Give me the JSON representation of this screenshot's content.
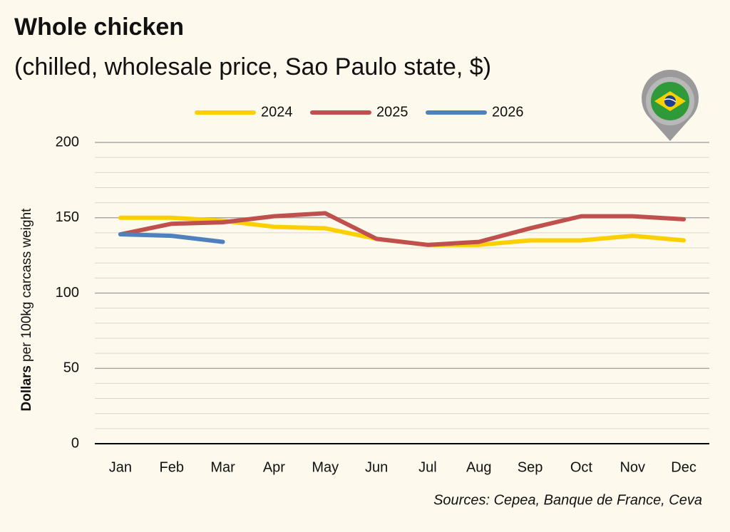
{
  "chart_data": {
    "type": "line",
    "title": "Whole chicken",
    "subtitle": "(chilled, wholesale price, Sao Paulo state, $)",
    "y_label_bold": "Dollars",
    "y_label": "per 100kg carcass weight",
    "source": "Sources: Cepea, Banque de France, Ceva",
    "categories": [
      "Jan",
      "Feb",
      "Mar",
      "Apr",
      "May",
      "Jun",
      "Jul",
      "Aug",
      "Sep",
      "Oct",
      "Nov",
      "Dec"
    ],
    "series": [
      {
        "name": "2024",
        "color": "#fcd000",
        "values": [
          150,
          150,
          148,
          144,
          143,
          136,
          132,
          132,
          135,
          135,
          138,
          135
        ]
      },
      {
        "name": "2025",
        "color": "#c0504d",
        "values": [
          139,
          146,
          147,
          151,
          153,
          136,
          132,
          134,
          143,
          151,
          151,
          149
        ]
      },
      {
        "name": "2026",
        "color": "#4f81bd",
        "values": [
          139,
          138,
          134,
          null,
          null,
          null,
          null,
          null,
          null,
          null,
          null,
          null
        ]
      }
    ],
    "ylim": [
      0,
      200
    ],
    "yticks": [
      0,
      50,
      100,
      150,
      200
    ],
    "minor_gridlines": [
      10,
      20,
      30,
      40,
      60,
      70,
      80,
      90,
      110,
      120,
      130,
      140,
      160,
      170,
      180,
      190
    ],
    "grid": true,
    "legend": "top"
  }
}
